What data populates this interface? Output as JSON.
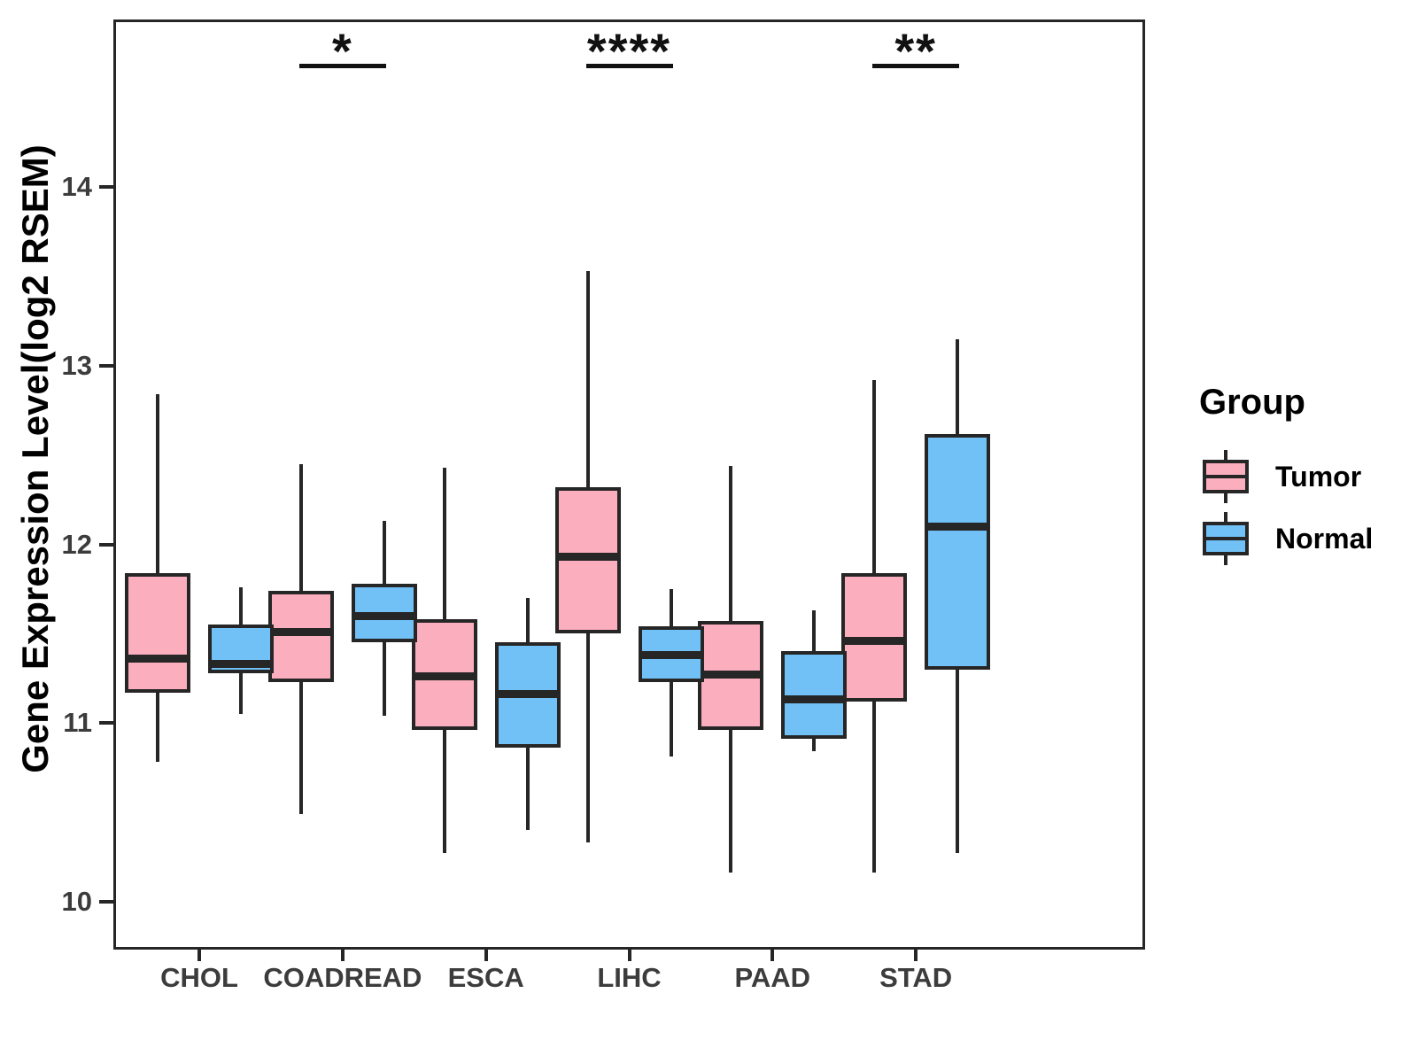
{
  "chart_data": {
    "type": "boxplot",
    "title": "",
    "xlabel": "",
    "ylabel": "Gene Expression Level(log2 RSEM)",
    "categories": [
      "CHOL",
      "COADREAD",
      "ESCA",
      "LIHC",
      "PAAD",
      "STAD"
    ],
    "y_ticks": [
      "10",
      "11",
      "12",
      "13",
      "14"
    ],
    "ylim": [
      9.73,
      14.94
    ],
    "grid": false,
    "stroke_color": "#262626",
    "axis_text_color": "#3C3C3C",
    "legend": {
      "title": "Group",
      "position": "right",
      "entries": [
        {
          "label": "Tumor",
          "color": "#FBAEBE"
        },
        {
          "label": "Normal",
          "color": "#71C1F7"
        }
      ]
    },
    "series": [
      {
        "name": "Tumor",
        "fill": "#FBAEBE",
        "boxes": [
          {
            "category": "CHOL",
            "low": 10.78,
            "q1": 11.17,
            "median": 11.36,
            "q3": 11.84,
            "high": 12.84
          },
          {
            "category": "COADREAD",
            "low": 10.49,
            "q1": 11.23,
            "median": 11.51,
            "q3": 11.74,
            "high": 12.45
          },
          {
            "category": "ESCA",
            "low": 10.27,
            "q1": 10.96,
            "median": 11.26,
            "q3": 11.58,
            "high": 12.43
          },
          {
            "category": "LIHC",
            "low": 10.33,
            "q1": 11.5,
            "median": 11.93,
            "q3": 12.32,
            "high": 13.53
          },
          {
            "category": "PAAD",
            "low": 10.16,
            "q1": 10.96,
            "median": 11.27,
            "q3": 11.57,
            "high": 12.44
          },
          {
            "category": "STAD",
            "low": 10.16,
            "q1": 11.12,
            "median": 11.46,
            "q3": 11.84,
            "high": 12.92
          }
        ]
      },
      {
        "name": "Normal",
        "fill": "#71C1F7",
        "boxes": [
          {
            "category": "CHOL",
            "low": 11.05,
            "q1": 11.28,
            "median": 11.33,
            "q3": 11.55,
            "high": 11.76
          },
          {
            "category": "COADREAD",
            "low": 11.04,
            "q1": 11.45,
            "median": 11.6,
            "q3": 11.78,
            "high": 12.13
          },
          {
            "category": "ESCA",
            "low": 10.4,
            "q1": 10.86,
            "median": 11.16,
            "q3": 11.45,
            "high": 11.7
          },
          {
            "category": "LIHC",
            "low": 10.81,
            "q1": 11.23,
            "median": 11.38,
            "q3": 11.54,
            "high": 11.75
          },
          {
            "category": "PAAD",
            "low": 10.84,
            "q1": 10.91,
            "median": 11.13,
            "q3": 11.4,
            "high": 11.63
          },
          {
            "category": "STAD",
            "low": 10.27,
            "q1": 11.3,
            "median": 12.1,
            "q3": 12.62,
            "high": 13.15
          }
        ]
      }
    ],
    "significance": [
      {
        "category": "COADREAD",
        "label": "*"
      },
      {
        "category": "LIHC",
        "label": "****"
      },
      {
        "category": "STAD",
        "label": "**"
      }
    ]
  }
}
